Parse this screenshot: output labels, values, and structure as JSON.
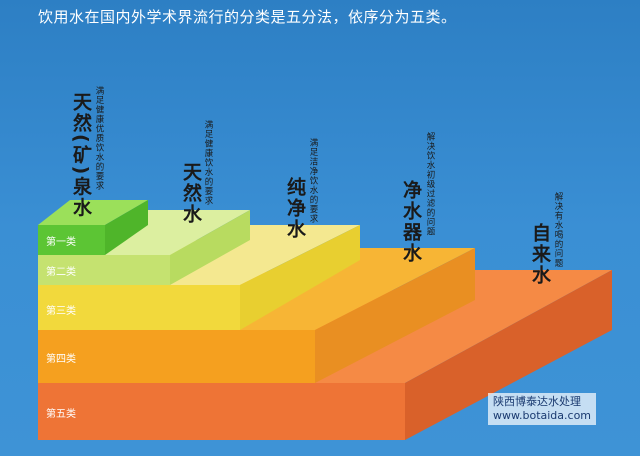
{
  "title": "饮用水在国内外学术界流行的分类是五分法，依序分为五类。",
  "categories": [
    {
      "tier": "第一类",
      "name": "天然(矿)泉水",
      "desc": "满足健康优质饮水的要求",
      "color": "#6ccf3a"
    },
    {
      "tier": "第二类",
      "name": "天然水",
      "desc": "满足健康饮水的要求",
      "color": "#c9e67a"
    },
    {
      "tier": "第三类",
      "name": "纯净水",
      "desc": "满足洁净饮水的要求",
      "color": "#f2e24a"
    },
    {
      "tier": "第四类",
      "name": "净水器水",
      "desc": "解决饮水初级过滤的问题",
      "color": "#f5a31e"
    },
    {
      "tier": "第五类",
      "name": "自来水",
      "desc": "解决有水喝的问题",
      "color": "#ef7a34"
    }
  ],
  "watermark": {
    "line1": "陕西博泰达水处理",
    "line2": "www.botaida.com"
  }
}
